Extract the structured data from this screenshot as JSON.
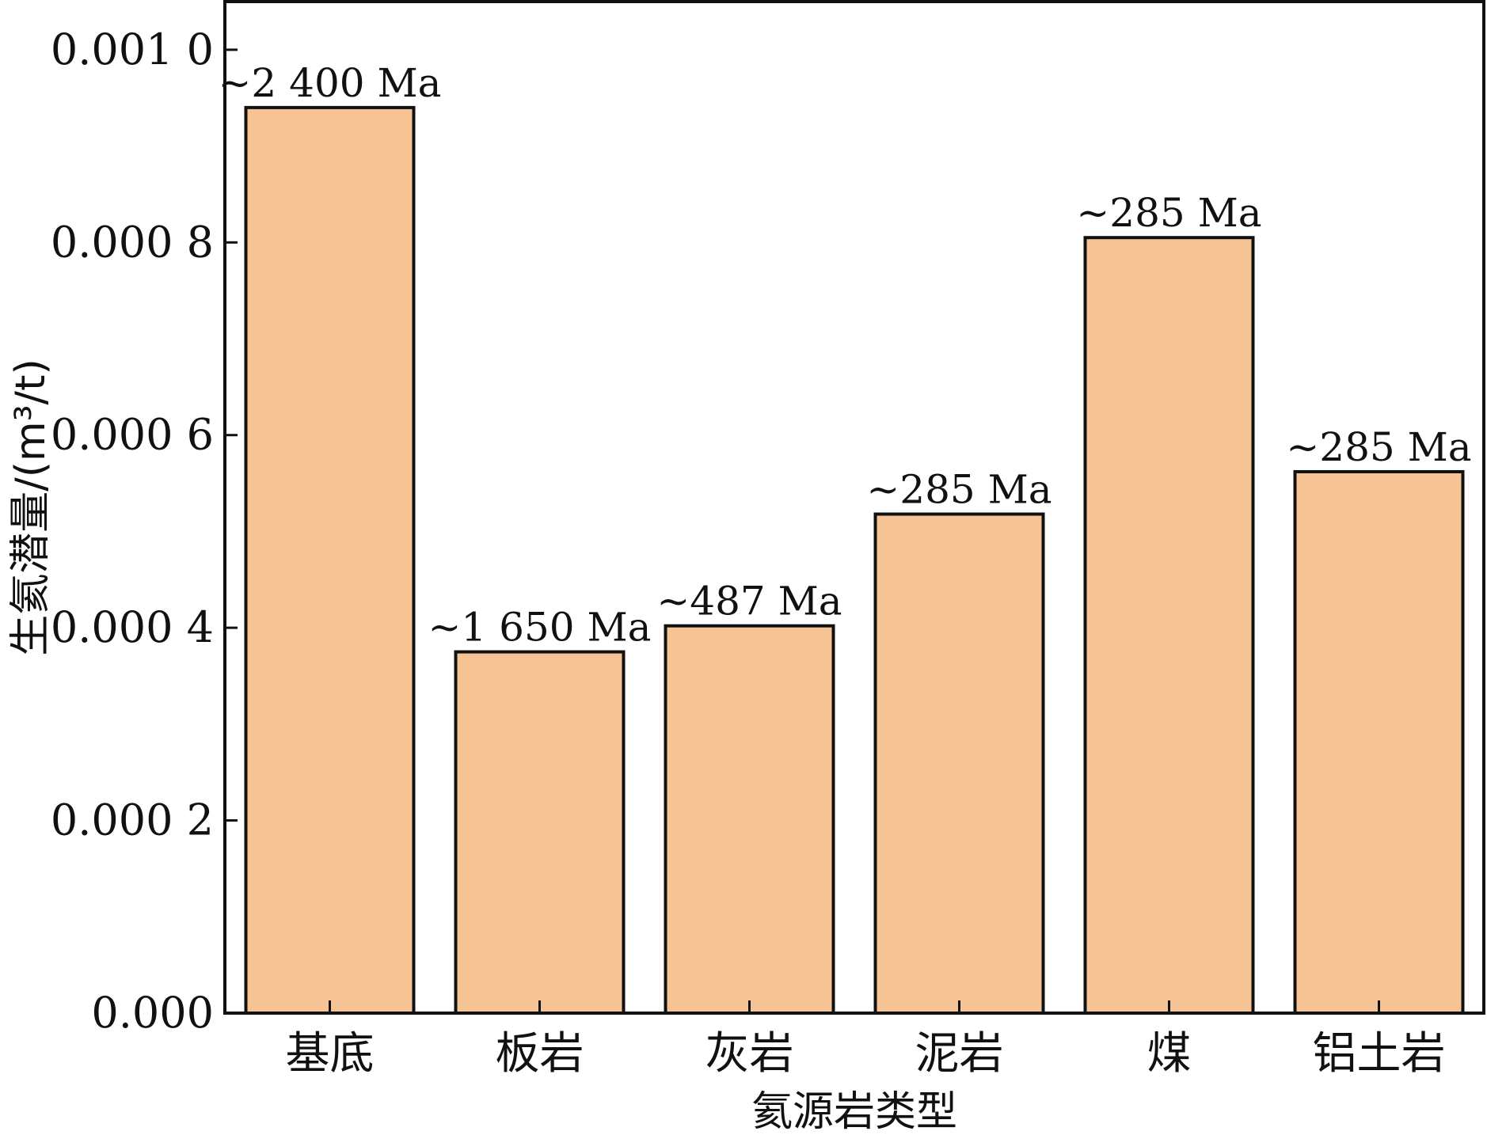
{
  "chart_data": {
    "type": "bar",
    "title": "",
    "xlabel": "氦源岩类型",
    "ylabel": "生氦潜量/(m³/t)",
    "ylim": [
      0,
      0.00105
    ],
    "y_ticks": [
      0,
      0.0002,
      0.0004,
      0.0006,
      0.0008,
      0.001
    ],
    "y_tick_labels": [
      "0.000",
      "0.000 2",
      "0.000 4",
      "0.000 6",
      "0.000 8",
      "0.001 0"
    ],
    "categories": [
      "基底",
      "板岩",
      "灰岩",
      "泥岩",
      "煤",
      "铝土岩"
    ],
    "values": [
      0.00094,
      0.000375,
      0.000402,
      0.000518,
      0.000805,
      0.000562
    ],
    "bar_labels": [
      "~2 400 Ma",
      "~1 650 Ma",
      "~487 Ma",
      "~285 Ma",
      "~285 Ma",
      "~285 Ma"
    ],
    "bar_color": "#f5c394",
    "bar_edge_color": "#111111",
    "grid": false,
    "legend": "none"
  }
}
